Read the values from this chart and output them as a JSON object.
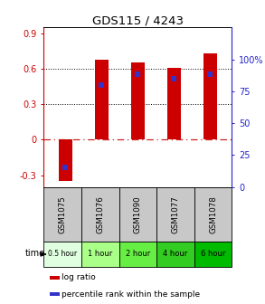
{
  "title": "GDS115 / 4243",
  "samples": [
    "GSM1075",
    "GSM1076",
    "GSM1090",
    "GSM1077",
    "GSM1078"
  ],
  "time_labels": [
    "0.5 hour",
    "1 hour",
    "2 hour",
    "4 hour",
    "6 hour"
  ],
  "log_ratios": [
    -0.35,
    0.68,
    0.65,
    0.61,
    0.73
  ],
  "percentile_ranks": [
    15,
    80,
    88,
    85,
    88
  ],
  "ylim_left": [
    -0.4,
    0.95
  ],
  "ylim_right": [
    0,
    125
  ],
  "yticks_left": [
    -0.3,
    0.0,
    0.3,
    0.6,
    0.9
  ],
  "yticks_right": [
    0,
    25,
    50,
    75,
    100
  ],
  "ytick_labels_left": [
    "-0.3",
    "0",
    "0.3",
    "0.6",
    "0.9"
  ],
  "ytick_labels_right": [
    "0",
    "25",
    "50",
    "75",
    "100%"
  ],
  "bar_color": "#cc0000",
  "dot_color": "#3333cc",
  "zero_line_color": "#cc2222",
  "grid_color": "#000000",
  "sample_box_color": "#c8c8c8",
  "time_colors": [
    "#e0ffe0",
    "#aaff88",
    "#66ee44",
    "#33cc22",
    "#00bb00"
  ],
  "left_axis_color": "#cc0000",
  "right_axis_color": "#2222cc",
  "bg_color": "#ffffff"
}
